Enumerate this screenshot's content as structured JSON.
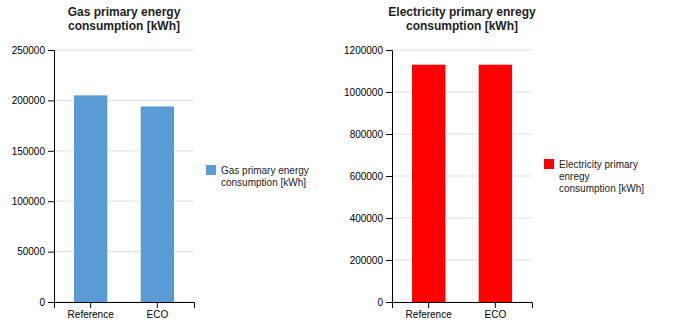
{
  "chart_data": [
    {
      "type": "bar",
      "title": "Gas primary energy\nconsumption [kWh]",
      "categories": [
        "Reference",
        "ECO"
      ],
      "series": [
        {
          "name": "Gas primary energy\nconsumption [kWh]",
          "color": "#5b9bd5",
          "values": [
            205000,
            194000
          ]
        }
      ],
      "ylim": [
        0,
        250000
      ],
      "yticks": [
        0,
        50000,
        100000,
        150000,
        200000,
        250000
      ],
      "grid": true,
      "legend": "right"
    },
    {
      "type": "bar",
      "title": "Electricity primary enregy\nconsumption [kWh]",
      "categories": [
        "Reference",
        "ECO"
      ],
      "series": [
        {
          "name": "Electricity primary\nenregy\nconsumption [kWh]",
          "color": "#ff0000",
          "values": [
            1130000,
            1130000
          ]
        }
      ],
      "ylim": [
        0,
        1200000
      ],
      "yticks": [
        0,
        200000,
        400000,
        600000,
        800000,
        1000000,
        1200000
      ],
      "grid": true,
      "legend": "right"
    }
  ]
}
